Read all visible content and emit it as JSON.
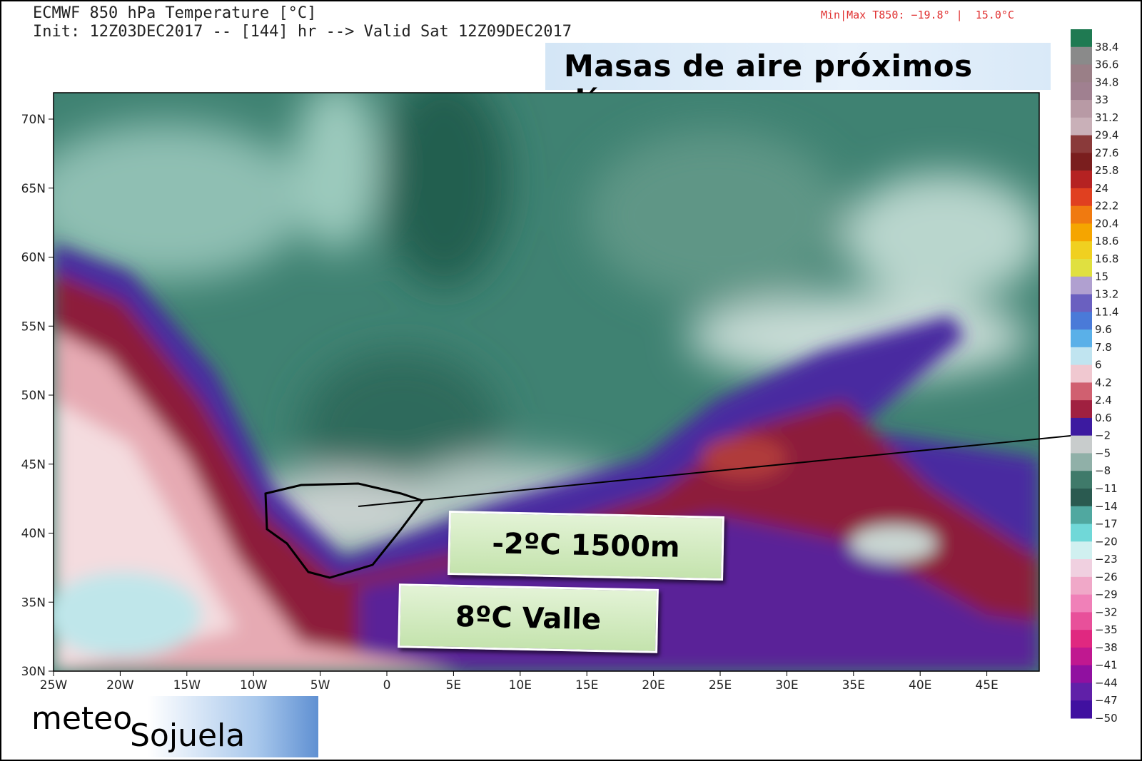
{
  "header": {
    "title": "ECMWF 850 hPa Temperature [°C]",
    "subtitle": "Init: 12Z03DEC2017 -- [144] hr --> Valid Sat 12Z09DEC2017",
    "minmax": "Min|Max T850: −19.8° |  15.0°C",
    "banner": "Masas de aire próximos días"
  },
  "map": {
    "lat_labels": [
      "70N",
      "65N",
      "60N",
      "55N",
      "50N",
      "45N",
      "40N",
      "35N",
      "30N"
    ],
    "lon_labels": [
      "25W",
      "20W",
      "15W",
      "10W",
      "5W",
      "0",
      "5E",
      "10E",
      "15E",
      "20E",
      "25E",
      "30E",
      "35E",
      "40E",
      "45E"
    ]
  },
  "colorbar": {
    "labels": [
      "38.4",
      "36.6",
      "34.8",
      "33",
      "31.2",
      "29.4",
      "27.6",
      "25.8",
      "24",
      "22.2",
      "20.4",
      "18.6",
      "16.8",
      "15",
      "13.2",
      "11.4",
      "9.6",
      "7.8",
      "6",
      "4.2",
      "2.4",
      "0.6",
      "−2",
      "−5",
      "−8",
      "−11",
      "−14",
      "−17",
      "−20",
      "−23",
      "−26",
      "−29",
      "−32",
      "−35",
      "−38",
      "−41",
      "−44",
      "−47",
      "−50"
    ]
  },
  "annotations": {
    "level": "-2ºC 1500m",
    "valley": "8ºC Valle"
  },
  "logo": {
    "word1": "meteo",
    "word2": "Sojuela"
  }
}
